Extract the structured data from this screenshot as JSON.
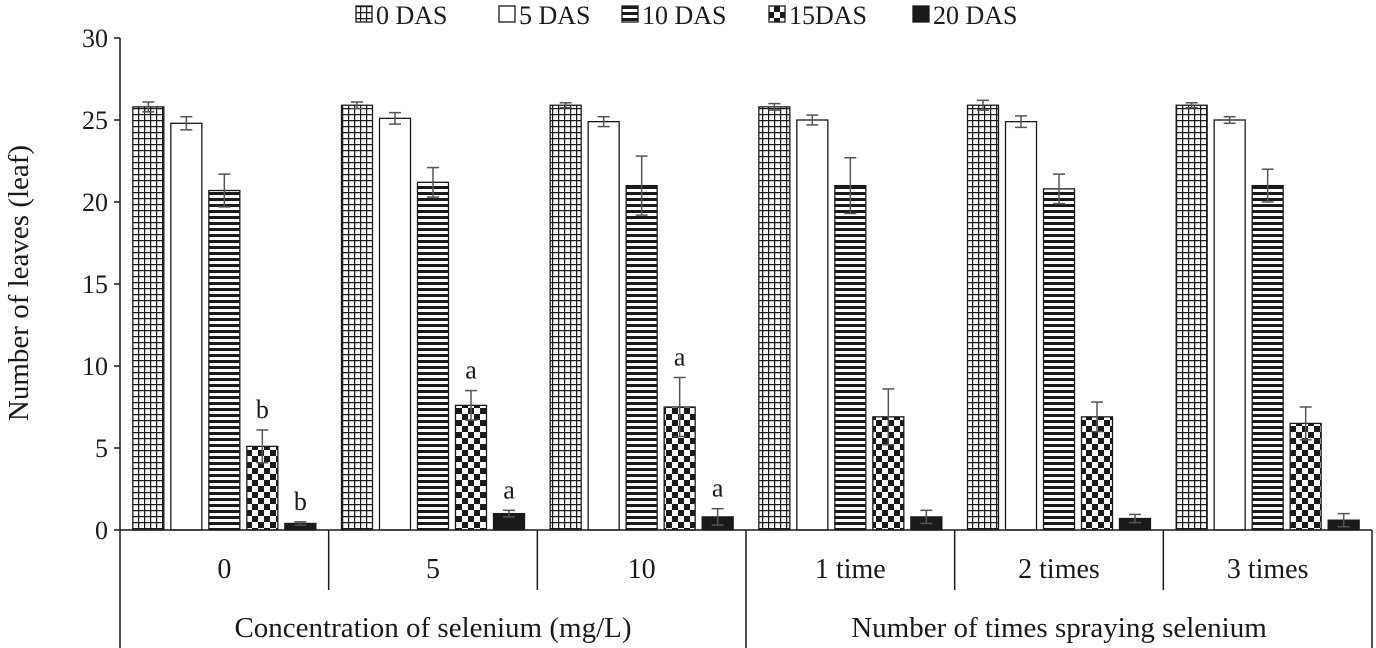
{
  "chart_data": {
    "type": "bar",
    "ylabel": "Number of leaves (leaf)",
    "ylim": [
      0,
      30
    ],
    "yticks": [
      0,
      5,
      10,
      15,
      20,
      25,
      30
    ],
    "categories": [
      "0",
      "5",
      "10",
      "1 time",
      "2 times",
      "3 times"
    ],
    "groups": [
      {
        "label": "Concentration of selenium (mg/L)",
        "categories": [
          "0",
          "5",
          "10"
        ]
      },
      {
        "label": "Number of times spraying selenium",
        "categories": [
          "1 time",
          "2 times",
          "3 times"
        ]
      }
    ],
    "series": [
      {
        "name": "0 DAS",
        "pattern": "grid",
        "values": [
          25.8,
          25.9,
          25.9,
          25.8,
          25.9,
          25.9
        ],
        "errors": [
          0.3,
          0.2,
          0.15,
          0.2,
          0.3,
          0.15
        ],
        "labels": [
          "",
          "",
          "",
          "",
          "",
          ""
        ]
      },
      {
        "name": "5 DAS",
        "pattern": "white",
        "values": [
          24.8,
          25.1,
          24.9,
          25.0,
          24.9,
          25.0
        ],
        "errors": [
          0.4,
          0.35,
          0.3,
          0.3,
          0.35,
          0.2
        ],
        "labels": [
          "",
          "",
          "",
          "",
          "",
          ""
        ]
      },
      {
        "name": "10 DAS",
        "pattern": "hstripe",
        "values": [
          20.7,
          21.2,
          21.0,
          21.0,
          20.8,
          21.0
        ],
        "errors": [
          1.0,
          0.9,
          1.8,
          1.7,
          0.9,
          1.0
        ],
        "labels": [
          "",
          "",
          "",
          "",
          "",
          ""
        ]
      },
      {
        "name": "15DAS",
        "pattern": "checker",
        "values": [
          5.1,
          7.6,
          7.5,
          6.9,
          6.9,
          6.5
        ],
        "errors": [
          1.0,
          0.9,
          1.8,
          1.7,
          0.9,
          1.0
        ],
        "labels": [
          "b",
          "a",
          "a",
          "",
          "",
          ""
        ]
      },
      {
        "name": "20 DAS",
        "pattern": "black",
        "values": [
          0.4,
          1.0,
          0.8,
          0.8,
          0.7,
          0.6
        ],
        "errors": [
          0.1,
          0.2,
          0.5,
          0.4,
          0.25,
          0.4
        ],
        "labels": [
          "b",
          "a",
          "a",
          "",
          "",
          ""
        ]
      }
    ]
  }
}
